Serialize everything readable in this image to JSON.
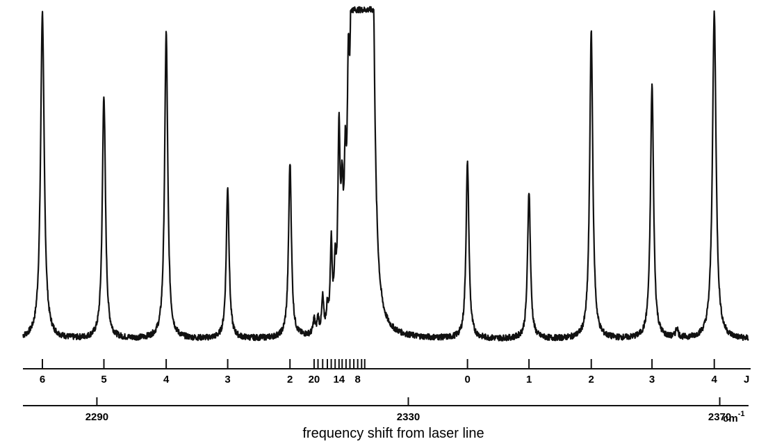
{
  "chart_data": {
    "type": "line",
    "title": "",
    "xlabel": "frequency shift from laser line",
    "ylabel": "",
    "grid": false,
    "legend": "none",
    "line_color": "#111111",
    "x_unit": "cm",
    "x_unit_exp": "-1",
    "j_axis_label": "J",
    "xlim": [
      2280.5,
      2373.7
    ],
    "x_ticks": [
      2290,
      2330,
      2370
    ],
    "x_tick_labels": [
      "2290",
      "2330",
      "2370"
    ],
    "baseline_intensity": 0.03,
    "peaks": [
      {
        "x": 2283.0,
        "height": 0.99,
        "width": 0.28
      },
      {
        "x": 2290.9,
        "height": 0.74,
        "width": 0.24
      },
      {
        "x": 2298.9,
        "height": 0.93,
        "width": 0.24
      },
      {
        "x": 2306.8,
        "height": 0.46,
        "width": 0.22
      },
      {
        "x": 2314.8,
        "height": 0.53,
        "width": 0.22
      },
      {
        "x": 2317.9,
        "height": 0.045,
        "width": 0.14
      },
      {
        "x": 2318.4,
        "height": 0.045,
        "width": 0.14
      },
      {
        "x": 2319.0,
        "height": 0.1,
        "width": 0.14
      },
      {
        "x": 2319.6,
        "height": 0.06,
        "width": 0.14
      },
      {
        "x": 2320.1,
        "height": 0.25,
        "width": 0.15
      },
      {
        "x": 2320.6,
        "height": 0.15,
        "width": 0.15
      },
      {
        "x": 2321.1,
        "height": 0.55,
        "width": 0.17
      },
      {
        "x": 2321.5,
        "height": 0.3,
        "width": 0.17
      },
      {
        "x": 2321.9,
        "height": 0.35,
        "width": 0.17
      },
      {
        "x": 2322.3,
        "height": 0.56,
        "width": 0.18
      },
      {
        "x": 2322.7,
        "height": 0.8,
        "width": 0.2
      },
      {
        "x": 2323.1,
        "height": 0.72,
        "width": 0.2
      },
      {
        "x": 2323.5,
        "height": 0.93,
        "width": 0.22
      },
      {
        "x": 2323.9,
        "height": 0.8,
        "width": 0.22
      },
      {
        "x": 2324.3,
        "height": 0.93,
        "width": 0.24
      },
      {
        "x": 2324.8,
        "height": 0.99,
        "width": 0.3
      },
      {
        "x": 2325.4,
        "height": 1.0,
        "width": 0.35
      },
      {
        "x": 2337.6,
        "height": 0.53,
        "width": 0.22
      },
      {
        "x": 2345.5,
        "height": 0.45,
        "width": 0.22
      },
      {
        "x": 2353.5,
        "height": 0.93,
        "width": 0.24
      },
      {
        "x": 2361.3,
        "height": 0.77,
        "width": 0.24
      },
      {
        "x": 2364.5,
        "height": 0.03,
        "width": 0.18
      },
      {
        "x": 2369.3,
        "height": 0.99,
        "width": 0.28
      }
    ],
    "j_ticks": [
      {
        "x": 2283.0,
        "label": "6"
      },
      {
        "x": 2290.9,
        "label": "5"
      },
      {
        "x": 2298.9,
        "label": "4"
      },
      {
        "x": 2306.8,
        "label": "3"
      },
      {
        "x": 2314.8,
        "label": "2"
      },
      {
        "x": 2317.9,
        "label": "20"
      },
      {
        "x": 2318.4,
        "label": ""
      },
      {
        "x": 2319.0,
        "label": ""
      },
      {
        "x": 2319.6,
        "label": ""
      },
      {
        "x": 2320.1,
        "label": ""
      },
      {
        "x": 2320.6,
        "label": ""
      },
      {
        "x": 2321.1,
        "label": "14"
      },
      {
        "x": 2321.5,
        "label": ""
      },
      {
        "x": 2322.0,
        "label": ""
      },
      {
        "x": 2322.5,
        "label": ""
      },
      {
        "x": 2323.0,
        "label": ""
      },
      {
        "x": 2323.5,
        "label": "8"
      },
      {
        "x": 2324.0,
        "label": ""
      },
      {
        "x": 2324.4,
        "label": ""
      },
      {
        "x": 2337.6,
        "label": "0"
      },
      {
        "x": 2345.5,
        "label": "1"
      },
      {
        "x": 2353.5,
        "label": "2"
      },
      {
        "x": 2361.3,
        "label": "3"
      },
      {
        "x": 2369.3,
        "label": "4"
      }
    ]
  }
}
